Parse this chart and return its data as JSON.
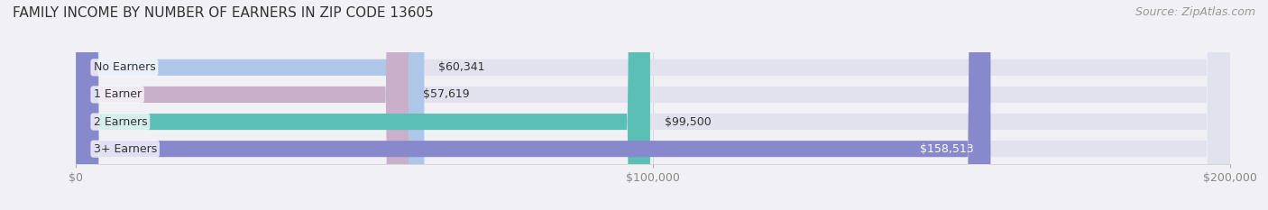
{
  "title": "FAMILY INCOME BY NUMBER OF EARNERS IN ZIP CODE 13605",
  "source": "Source: ZipAtlas.com",
  "categories": [
    "No Earners",
    "1 Earner",
    "2 Earners",
    "3+ Earners"
  ],
  "values": [
    60341,
    57619,
    99500,
    158513
  ],
  "bar_colors": [
    "#aec6e8",
    "#c9afc9",
    "#5bbfb5",
    "#8888cc"
  ],
  "label_colors": [
    "#333333",
    "#333333",
    "#333333",
    "#ffffff"
  ],
  "value_labels": [
    "$60,341",
    "$57,619",
    "$99,500",
    "$158,513"
  ],
  "xlim": [
    0,
    200000
  ],
  "xtick_labels": [
    "$0",
    "$100,000",
    "$200,000"
  ],
  "background_color": "#f0f0f5",
  "bar_background_color": "#e2e2ee",
  "title_fontsize": 11,
  "source_fontsize": 9,
  "label_fontsize": 9,
  "value_fontsize": 9,
  "bar_height": 0.6
}
